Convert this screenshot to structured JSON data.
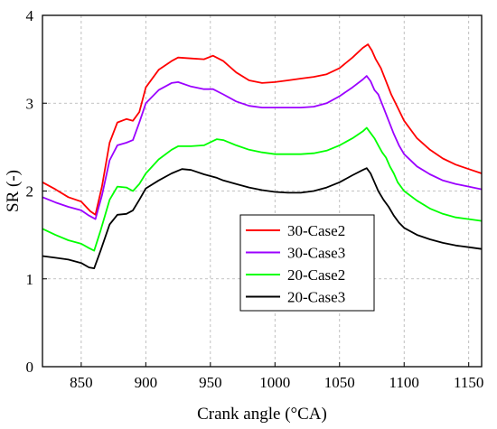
{
  "chart_data": {
    "type": "line",
    "xlabel": "Crank angle (°CA)",
    "ylabel": "SR (-)",
    "xlim": [
      820,
      1160
    ],
    "ylim": [
      0,
      4
    ],
    "xticks": [
      850,
      900,
      950,
      1000,
      1050,
      1100,
      1150
    ],
    "yticks": [
      0,
      1,
      2,
      3,
      4
    ],
    "grid": true,
    "legend_position": "center-right",
    "series": [
      {
        "name": "30-Case2",
        "color": "#ff0000",
        "points": [
          [
            820,
            2.1
          ],
          [
            830,
            2.02
          ],
          [
            840,
            1.93
          ],
          [
            850,
            1.88
          ],
          [
            857,
            1.77
          ],
          [
            861,
            1.73
          ],
          [
            866,
            2.05
          ],
          [
            872,
            2.55
          ],
          [
            878,
            2.78
          ],
          [
            885,
            2.82
          ],
          [
            890,
            2.8
          ],
          [
            895,
            2.9
          ],
          [
            900,
            3.18
          ],
          [
            910,
            3.38
          ],
          [
            920,
            3.48
          ],
          [
            925,
            3.52
          ],
          [
            935,
            3.51
          ],
          [
            945,
            3.5
          ],
          [
            952,
            3.54
          ],
          [
            960,
            3.48
          ],
          [
            970,
            3.35
          ],
          [
            980,
            3.26
          ],
          [
            990,
            3.23
          ],
          [
            1000,
            3.24
          ],
          [
            1010,
            3.26
          ],
          [
            1020,
            3.28
          ],
          [
            1030,
            3.3
          ],
          [
            1040,
            3.33
          ],
          [
            1050,
            3.4
          ],
          [
            1060,
            3.52
          ],
          [
            1068,
            3.63
          ],
          [
            1072,
            3.67
          ],
          [
            1075,
            3.6
          ],
          [
            1078,
            3.5
          ],
          [
            1082,
            3.4
          ],
          [
            1086,
            3.25
          ],
          [
            1090,
            3.1
          ],
          [
            1095,
            2.95
          ],
          [
            1100,
            2.8
          ],
          [
            1110,
            2.6
          ],
          [
            1120,
            2.47
          ],
          [
            1130,
            2.37
          ],
          [
            1140,
            2.3
          ],
          [
            1150,
            2.25
          ],
          [
            1160,
            2.2
          ]
        ]
      },
      {
        "name": "30-Case3",
        "color": "#9b00ff",
        "points": [
          [
            820,
            1.93
          ],
          [
            830,
            1.87
          ],
          [
            840,
            1.82
          ],
          [
            850,
            1.78
          ],
          [
            856,
            1.72
          ],
          [
            861,
            1.68
          ],
          [
            866,
            1.95
          ],
          [
            872,
            2.35
          ],
          [
            878,
            2.52
          ],
          [
            885,
            2.55
          ],
          [
            890,
            2.58
          ],
          [
            895,
            2.78
          ],
          [
            900,
            3.0
          ],
          [
            910,
            3.15
          ],
          [
            920,
            3.23
          ],
          [
            925,
            3.24
          ],
          [
            935,
            3.19
          ],
          [
            945,
            3.16
          ],
          [
            952,
            3.16
          ],
          [
            960,
            3.1
          ],
          [
            970,
            3.02
          ],
          [
            980,
            2.97
          ],
          [
            990,
            2.95
          ],
          [
            1000,
            2.95
          ],
          [
            1010,
            2.95
          ],
          [
            1020,
            2.95
          ],
          [
            1030,
            2.96
          ],
          [
            1040,
            3.0
          ],
          [
            1050,
            3.08
          ],
          [
            1060,
            3.18
          ],
          [
            1068,
            3.27
          ],
          [
            1071,
            3.31
          ],
          [
            1074,
            3.25
          ],
          [
            1077,
            3.15
          ],
          [
            1080,
            3.1
          ],
          [
            1084,
            2.95
          ],
          [
            1088,
            2.8
          ],
          [
            1092,
            2.65
          ],
          [
            1096,
            2.52
          ],
          [
            1100,
            2.42
          ],
          [
            1110,
            2.28
          ],
          [
            1120,
            2.19
          ],
          [
            1130,
            2.12
          ],
          [
            1140,
            2.08
          ],
          [
            1150,
            2.05
          ],
          [
            1160,
            2.02
          ]
        ]
      },
      {
        "name": "20-Case2",
        "color": "#00ff00",
        "points": [
          [
            820,
            1.57
          ],
          [
            830,
            1.5
          ],
          [
            840,
            1.44
          ],
          [
            850,
            1.4
          ],
          [
            856,
            1.35
          ],
          [
            860,
            1.32
          ],
          [
            865,
            1.55
          ],
          [
            872,
            1.9
          ],
          [
            878,
            2.05
          ],
          [
            885,
            2.04
          ],
          [
            890,
            2.0
          ],
          [
            895,
            2.08
          ],
          [
            900,
            2.2
          ],
          [
            910,
            2.36
          ],
          [
            920,
            2.47
          ],
          [
            925,
            2.51
          ],
          [
            935,
            2.51
          ],
          [
            945,
            2.52
          ],
          [
            955,
            2.59
          ],
          [
            960,
            2.58
          ],
          [
            970,
            2.52
          ],
          [
            980,
            2.47
          ],
          [
            990,
            2.44
          ],
          [
            1000,
            2.42
          ],
          [
            1010,
            2.42
          ],
          [
            1020,
            2.42
          ],
          [
            1030,
            2.43
          ],
          [
            1040,
            2.46
          ],
          [
            1050,
            2.52
          ],
          [
            1060,
            2.6
          ],
          [
            1068,
            2.68
          ],
          [
            1071,
            2.72
          ],
          [
            1074,
            2.66
          ],
          [
            1077,
            2.6
          ],
          [
            1080,
            2.52
          ],
          [
            1083,
            2.44
          ],
          [
            1086,
            2.38
          ],
          [
            1089,
            2.28
          ],
          [
            1092,
            2.2
          ],
          [
            1095,
            2.1
          ],
          [
            1100,
            2.0
          ],
          [
            1110,
            1.89
          ],
          [
            1120,
            1.8
          ],
          [
            1130,
            1.74
          ],
          [
            1140,
            1.7
          ],
          [
            1150,
            1.68
          ],
          [
            1160,
            1.66
          ]
        ]
      },
      {
        "name": "20-Case3",
        "color": "#000000",
        "points": [
          [
            820,
            1.26
          ],
          [
            830,
            1.24
          ],
          [
            840,
            1.22
          ],
          [
            850,
            1.18
          ],
          [
            856,
            1.13
          ],
          [
            860,
            1.12
          ],
          [
            865,
            1.32
          ],
          [
            872,
            1.62
          ],
          [
            878,
            1.73
          ],
          [
            885,
            1.74
          ],
          [
            890,
            1.78
          ],
          [
            895,
            1.9
          ],
          [
            900,
            2.03
          ],
          [
            910,
            2.12
          ],
          [
            920,
            2.2
          ],
          [
            928,
            2.25
          ],
          [
            935,
            2.24
          ],
          [
            945,
            2.19
          ],
          [
            955,
            2.15
          ],
          [
            960,
            2.12
          ],
          [
            970,
            2.08
          ],
          [
            980,
            2.04
          ],
          [
            990,
            2.01
          ],
          [
            1000,
            1.99
          ],
          [
            1010,
            1.98
          ],
          [
            1020,
            1.98
          ],
          [
            1030,
            2.0
          ],
          [
            1040,
            2.04
          ],
          [
            1050,
            2.1
          ],
          [
            1060,
            2.18
          ],
          [
            1068,
            2.24
          ],
          [
            1071,
            2.26
          ],
          [
            1074,
            2.2
          ],
          [
            1077,
            2.1
          ],
          [
            1080,
            2.0
          ],
          [
            1084,
            1.9
          ],
          [
            1088,
            1.82
          ],
          [
            1092,
            1.72
          ],
          [
            1096,
            1.64
          ],
          [
            1100,
            1.58
          ],
          [
            1110,
            1.5
          ],
          [
            1120,
            1.45
          ],
          [
            1130,
            1.41
          ],
          [
            1140,
            1.38
          ],
          [
            1150,
            1.36
          ],
          [
            1160,
            1.34
          ]
        ]
      }
    ]
  }
}
